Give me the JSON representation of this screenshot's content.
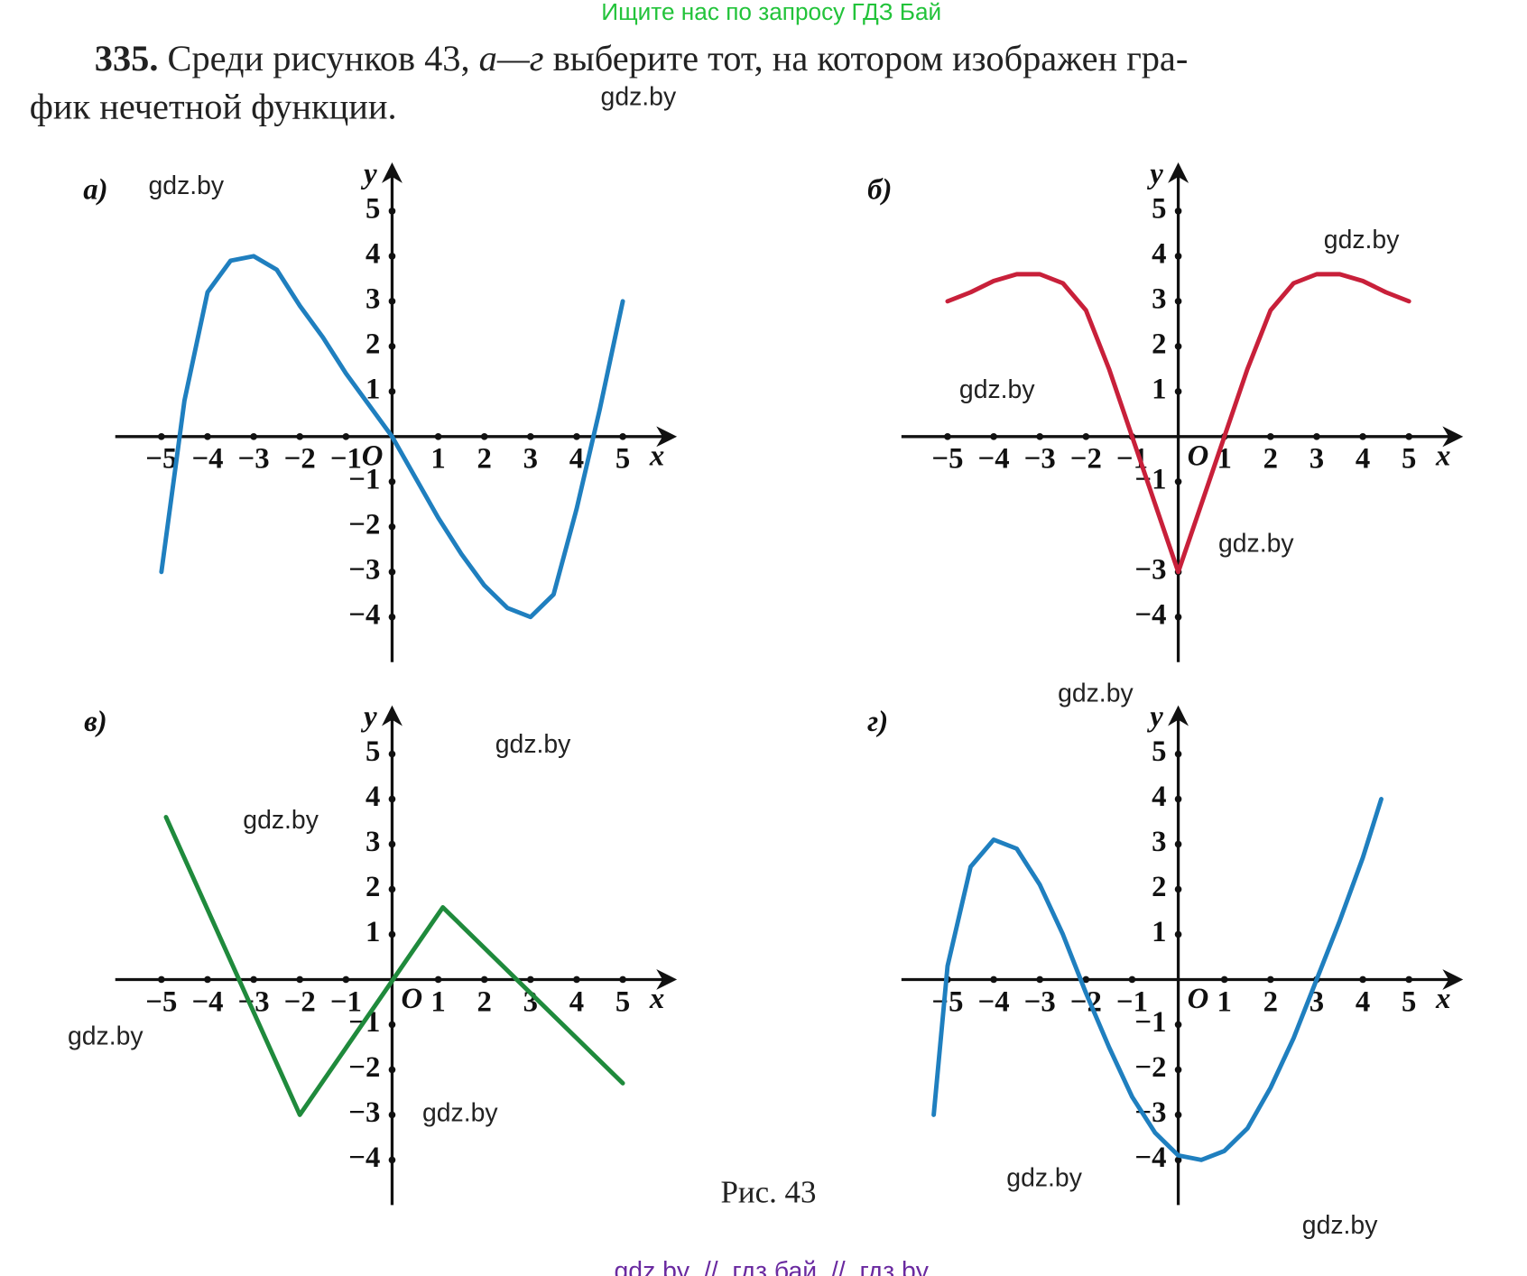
{
  "header": {
    "search_hint": "Ищите нас по запросу ГДЗ Бай"
  },
  "problem": {
    "number": "335.",
    "text_before": " Среди рисунков 43, ",
    "letters": "а—г",
    "text_after": " выберите тот, на котором изображен гра-",
    "line2": "фик нечетной функции."
  },
  "chart_data": [
    {
      "type": "line",
      "label": "а)",
      "x_label": "x",
      "y_label": "y",
      "origin_label": "O",
      "color": "#1f7fbf",
      "xlim": [
        -6,
        6
      ],
      "ylim": [
        -5,
        5.9
      ],
      "xticks": [
        {
          "value": -5,
          "label": "−5"
        },
        {
          "value": -4,
          "label": "−4"
        },
        {
          "value": -3,
          "label": "−3"
        },
        {
          "value": -2,
          "label": "−2"
        },
        {
          "value": -1,
          "label": "−1"
        },
        1,
        2,
        3,
        4,
        5
      ],
      "yticks": [
        5,
        4,
        3,
        2,
        1,
        {
          "value": -1,
          "label": "−1"
        },
        {
          "value": -2,
          "label": "−2"
        },
        {
          "value": -3,
          "label": "−3"
        },
        {
          "value": -4,
          "label": "−4"
        }
      ],
      "x": [
        -5,
        -4.5,
        -4,
        -3.5,
        -3,
        -2.5,
        -2,
        -1.5,
        -1,
        -0.5,
        0,
        0.5,
        1,
        1.5,
        2,
        2.5,
        3,
        3.5,
        4,
        4.5,
        5
      ],
      "values": [
        -3,
        0.8,
        3.2,
        3.9,
        4,
        3.7,
        2.9,
        2.2,
        1.4,
        0.7,
        0,
        -0.9,
        -1.8,
        -2.6,
        -3.3,
        -3.8,
        -4,
        -3.5,
        -1.6,
        0.6,
        3
      ]
    },
    {
      "type": "line",
      "label": "б)",
      "x_label": "x",
      "y_label": "y",
      "origin_label": "O",
      "color": "#c8203a",
      "xlim": [
        -6,
        6
      ],
      "ylim": [
        -5,
        5.9
      ],
      "xticks": [
        {
          "value": -5,
          "label": "−5"
        },
        {
          "value": -4,
          "label": "−4"
        },
        {
          "value": -3,
          "label": "−3"
        },
        {
          "value": -2,
          "label": "−2"
        },
        {
          "value": -1,
          "label": "−1"
        },
        1,
        2,
        3,
        4,
        5
      ],
      "yticks": [
        5,
        4,
        3,
        2,
        1,
        {
          "value": -1,
          "label": "−1"
        },
        {
          "value": -3,
          "label": "−3"
        },
        {
          "value": -4,
          "label": "−4"
        }
      ],
      "x": [
        -5,
        -4.5,
        -4,
        -3.5,
        -3,
        -2.5,
        -2,
        -1.5,
        -1,
        -0.5,
        0,
        0.5,
        1,
        1.5,
        2,
        2.5,
        3,
        3.5,
        4,
        4.5,
        5
      ],
      "values": [
        3,
        3.2,
        3.45,
        3.6,
        3.6,
        3.4,
        2.8,
        1.5,
        0,
        -1.5,
        -3,
        -1.5,
        0,
        1.5,
        2.8,
        3.4,
        3.6,
        3.6,
        3.45,
        3.2,
        3
      ]
    },
    {
      "type": "line",
      "label": "в)",
      "x_label": "x",
      "y_label": "y",
      "origin_label": "O",
      "color": "#1f8a3c",
      "xlim": [
        -6,
        6
      ],
      "ylim": [
        -5,
        5.9
      ],
      "xticks": [
        {
          "value": -5,
          "label": "−5"
        },
        {
          "value": -4,
          "label": "−4"
        },
        {
          "value": -3,
          "label": "−3"
        },
        {
          "value": -2,
          "label": "−2"
        },
        {
          "value": -1,
          "label": "−1"
        },
        1,
        2,
        3,
        4,
        5
      ],
      "yticks": [
        5,
        4,
        3,
        2,
        1,
        {
          "value": -1,
          "label": "−1"
        },
        {
          "value": -2,
          "label": "−2"
        },
        {
          "value": -3,
          "label": "−3"
        },
        {
          "value": -4,
          "label": "−4"
        }
      ],
      "x": [
        -4.9,
        -2,
        1.1,
        5
      ],
      "values": [
        3.6,
        -3,
        1.6,
        -2.3
      ]
    },
    {
      "type": "line",
      "label": "г)",
      "x_label": "x",
      "y_label": "y",
      "origin_label": "O",
      "color": "#1f7fbf",
      "xlim": [
        -6,
        6
      ],
      "ylim": [
        -5,
        5.9
      ],
      "xticks": [
        {
          "value": -5,
          "label": "−5"
        },
        {
          "value": -4,
          "label": "−4"
        },
        {
          "value": -3,
          "label": "−3"
        },
        {
          "value": -2,
          "label": "−2"
        },
        {
          "value": -1,
          "label": "−1"
        },
        1,
        2,
        3,
        4,
        5
      ],
      "yticks": [
        5,
        4,
        3,
        2,
        1,
        {
          "value": -1,
          "label": "−1"
        },
        {
          "value": -2,
          "label": "−2"
        },
        {
          "value": -3,
          "label": "−3"
        },
        {
          "value": -4,
          "label": "−4"
        }
      ],
      "x": [
        -5.3,
        -5,
        -4.5,
        -4,
        -3.5,
        -3,
        -2.5,
        -2,
        -1.5,
        -1,
        -0.5,
        0,
        0.5,
        1,
        1.5,
        2,
        2.5,
        3,
        3.5,
        4,
        4.4
      ],
      "values": [
        -3,
        0.3,
        2.5,
        3.1,
        2.9,
        2.1,
        1.0,
        -0.3,
        -1.5,
        -2.6,
        -3.4,
        -3.9,
        -4,
        -3.8,
        -3.3,
        -2.4,
        -1.3,
        0,
        1.3,
        2.7,
        4
      ]
    }
  ],
  "caption": "Рис. 43",
  "watermarks": [
    "gdz.by",
    "gdz.by",
    "gdz.by",
    "gdz.by",
    "gdz.by",
    "gdz.by",
    "gdz.by",
    "gdz.by",
    "gdz.by",
    "gdz.by",
    "gdz.by",
    "gdz.by"
  ],
  "footer": "gdz by  //  гдз бай  //  гдз by"
}
